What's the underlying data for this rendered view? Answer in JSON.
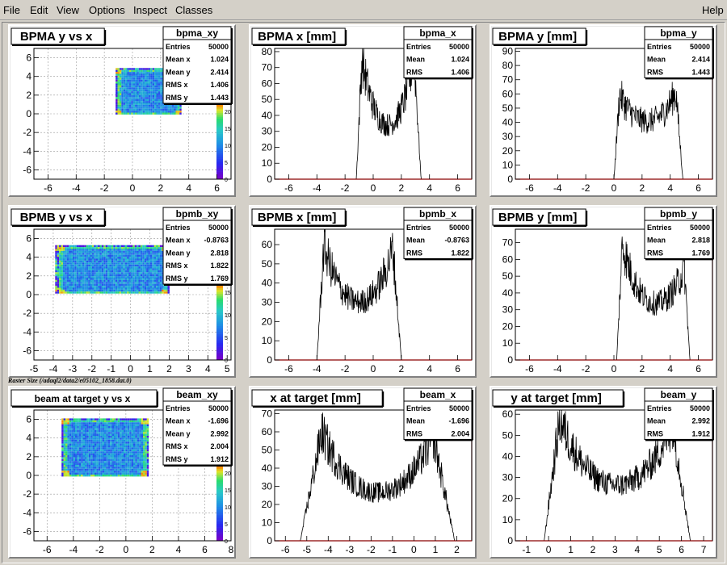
{
  "menu": {
    "file": "File",
    "edit": "Edit",
    "view": "View",
    "options": "Options",
    "inspect": "Inspect",
    "classes": "Classes",
    "help": "Help"
  },
  "footer_label": "Raster Size (/adaql2/data2/e05102_1858.dat.0)",
  "colors": {
    "pad_bg": "#ffffff",
    "frame": "#d4d0c8",
    "hist_line": "#000000",
    "frame_line": "#8b0000"
  },
  "chart_data": [
    {
      "id": "bpma_xy",
      "type": "heatmap",
      "title": "BPMA y vs x",
      "xlim": [
        -7,
        7
      ],
      "ylim": [
        -7,
        7
      ],
      "xticks": [
        -6,
        -4,
        -2,
        0,
        2,
        4,
        6
      ],
      "yticks": [
        -6,
        -4,
        -2,
        0,
        2,
        4,
        6
      ],
      "grid": true,
      "region": {
        "x": [
          -1.2,
          3.4
        ],
        "y": [
          0,
          4.9
        ]
      },
      "z_ticks": [
        0,
        5,
        10,
        15,
        20
      ],
      "stats": {
        "name": "bpma_xy",
        "rows": [
          [
            "Entries",
            "50000"
          ],
          [
            "Mean x",
            "1.024"
          ],
          [
            "Mean y",
            "2.414"
          ],
          [
            "RMS x",
            "1.406"
          ],
          [
            "RMS y",
            "1.443"
          ]
        ]
      }
    },
    {
      "id": "bpma_x",
      "type": "line",
      "title": "BPMA x [mm]",
      "xlim": [
        -7,
        7
      ],
      "ylim": [
        0,
        82
      ],
      "xticks": [
        -6,
        -4,
        -2,
        0,
        2,
        4,
        6
      ],
      "yticks": [
        0,
        10,
        20,
        30,
        40,
        50,
        60,
        70,
        80
      ],
      "peaks": {
        "start": -1.2,
        "p1": -0.8,
        "v1": 76,
        "mid": 28,
        "p2": 2.9,
        "v2": 78,
        "end": 3.4
      },
      "stats": {
        "name": "bpma_x",
        "rows": [
          [
            "Entries",
            "50000"
          ],
          [
            "Mean",
            "1.024"
          ],
          [
            "RMS",
            "1.406"
          ]
        ]
      }
    },
    {
      "id": "bpma_y",
      "type": "line",
      "title": "BPMA y [mm]",
      "xlim": [
        -7,
        7
      ],
      "ylim": [
        0,
        92
      ],
      "xticks": [
        -6,
        -4,
        -2,
        0,
        2,
        4,
        6
      ],
      "yticks": [
        0,
        10,
        20,
        30,
        40,
        50,
        60,
        70,
        80,
        90
      ],
      "peaks": {
        "start": 0,
        "p1": 0.4,
        "v1": 60,
        "mid": 38,
        "p2": 4.4,
        "v2": 62,
        "end": 4.9
      },
      "stats": {
        "name": "bpma_y",
        "rows": [
          [
            "Entries",
            "50000"
          ],
          [
            "Mean",
            "2.414"
          ],
          [
            "RMS",
            "1.443"
          ]
        ]
      }
    },
    {
      "id": "bpmb_xy",
      "type": "heatmap",
      "title": "BPMB y vs x",
      "xlim": [
        -5,
        5.2
      ],
      "ylim": [
        -7,
        7
      ],
      "xticks": [
        -5,
        -4,
        -3,
        -2,
        -1,
        0,
        1,
        2,
        3,
        4,
        5
      ],
      "yticks": [
        -6,
        -4,
        -2,
        0,
        2,
        4,
        6
      ],
      "grid": true,
      "region": {
        "x": [
          -3.9,
          2.0
        ],
        "y": [
          0.2,
          5.3
        ]
      },
      "z_ticks": [
        0,
        5,
        10,
        15
      ],
      "stats": {
        "name": "bpmb_xy",
        "rows": [
          [
            "Entries",
            "50000"
          ],
          [
            "Mean x",
            "-0.8763"
          ],
          [
            "Mean y",
            "2.818"
          ],
          [
            "RMS x",
            "1.822"
          ],
          [
            "RMS y",
            "1.769"
          ]
        ]
      }
    },
    {
      "id": "bpmb_x",
      "type": "line",
      "title": "BPMB x [mm]",
      "xlim": [
        -7,
        7
      ],
      "ylim": [
        0,
        68
      ],
      "xticks": [
        -6,
        -4,
        -2,
        0,
        2,
        4,
        6
      ],
      "yticks": [
        0,
        10,
        20,
        30,
        40,
        50,
        60
      ],
      "peaks": {
        "start": -4.0,
        "p1": -3.5,
        "v1": 60,
        "mid": 26,
        "p2": 1.4,
        "v2": 58,
        "end": 2.0
      },
      "stats": {
        "name": "bpmb_x",
        "rows": [
          [
            "Entries",
            "50000"
          ],
          [
            "Mean",
            "-0.8763"
          ],
          [
            "RMS",
            "1.822"
          ]
        ]
      }
    },
    {
      "id": "bpmb_y",
      "type": "line",
      "title": "BPMB y [mm]",
      "xlim": [
        -7,
        7
      ],
      "ylim": [
        0,
        78
      ],
      "xticks": [
        -6,
        -4,
        -2,
        0,
        2,
        4,
        6
      ],
      "yticks": [
        0,
        10,
        20,
        30,
        40,
        50,
        60,
        70
      ],
      "peaks": {
        "start": 0.2,
        "p1": 0.6,
        "v1": 70,
        "mid": 30,
        "p2": 5.0,
        "v2": 55,
        "end": 5.4
      },
      "stats": {
        "name": "bpmb_y",
        "rows": [
          [
            "Entries",
            "50000"
          ],
          [
            "Mean",
            "2.818"
          ],
          [
            "RMS",
            "1.769"
          ]
        ]
      }
    },
    {
      "id": "beam_xy",
      "type": "heatmap",
      "title": "beam at target y vs x",
      "xlim": [
        -7,
        8
      ],
      "ylim": [
        -7,
        7
      ],
      "xticks": [
        -6,
        -4,
        -2,
        0,
        2,
        4,
        6,
        8
      ],
      "yticks": [
        -6,
        -4,
        -2,
        0,
        2,
        4,
        6
      ],
      "grid": true,
      "region": {
        "x": [
          -4.9,
          1.6
        ],
        "y": [
          -0.1,
          6.1
        ]
      },
      "z_ticks": [
        0,
        5,
        10,
        15,
        20
      ],
      "stats": {
        "name": "beam_xy",
        "rows": [
          [
            "Entries",
            "50000"
          ],
          [
            "Mean x",
            "-1.696"
          ],
          [
            "Mean y",
            "2.992"
          ],
          [
            "RMS x",
            "2.004"
          ],
          [
            "RMS y",
            "1.912"
          ]
        ]
      }
    },
    {
      "id": "beam_x",
      "type": "line",
      "title": "x at target [mm]",
      "xlim": [
        -6.5,
        2.7
      ],
      "ylim": [
        0,
        72
      ],
      "xticks": [
        -6,
        -5,
        -4,
        -3,
        -2,
        -1,
        0,
        1,
        2
      ],
      "yticks": [
        0,
        10,
        20,
        30,
        40,
        50,
        60,
        70
      ],
      "peaks": {
        "start": -5.3,
        "p1": -4.3,
        "v1": 60,
        "mid": 22,
        "p2": 0.9,
        "v2": 58,
        "end": 1.9
      },
      "stats": {
        "name": "beam_x",
        "rows": [
          [
            "Entries",
            "50000"
          ],
          [
            "Mean",
            "-1.696"
          ],
          [
            "RMS",
            "2.004"
          ]
        ]
      }
    },
    {
      "id": "beam_y",
      "type": "line",
      "title": "y at target [mm]",
      "xlim": [
        -1.5,
        7.4
      ],
      "ylim": [
        0,
        62
      ],
      "xticks": [
        -1,
        0,
        1,
        2,
        3,
        4,
        5,
        6,
        7
      ],
      "yticks": [
        0,
        10,
        20,
        30,
        40,
        50,
        60
      ],
      "peaks": {
        "start": -0.2,
        "p1": 0.5,
        "v1": 58,
        "mid": 22,
        "p2": 5.6,
        "v2": 56,
        "end": 6.4
      },
      "stats": {
        "name": "beam_y",
        "rows": [
          [
            "Entries",
            "50000"
          ],
          [
            "Mean",
            "2.992"
          ],
          [
            "RMS",
            "1.912"
          ]
        ]
      }
    }
  ]
}
